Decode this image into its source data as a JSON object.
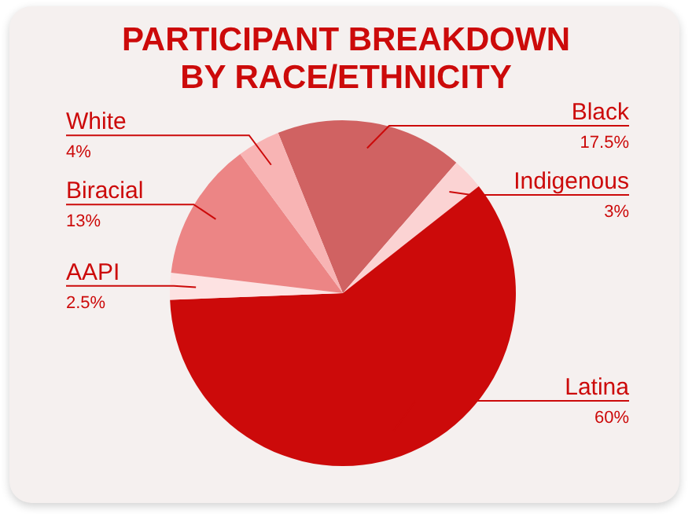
{
  "chart_data": {
    "type": "pie",
    "title": "PARTICIPANT BREAKDOWN\nBY RACE/ETHNICITY",
    "categories": [
      "Black",
      "Indigenous",
      "Latina",
      "AAPI",
      "Biracial",
      "White"
    ],
    "values": [
      17.5,
      3,
      60,
      2.5,
      13,
      4
    ],
    "value_labels": [
      "17.5%",
      "3%",
      "60%",
      "2.5%",
      "13%",
      "4%"
    ],
    "colors": [
      "#d06262",
      "#fbd3d3",
      "#cc0a0a",
      "#fde2e2",
      "#ec8585",
      "#f8b4b4"
    ],
    "legend": false
  }
}
